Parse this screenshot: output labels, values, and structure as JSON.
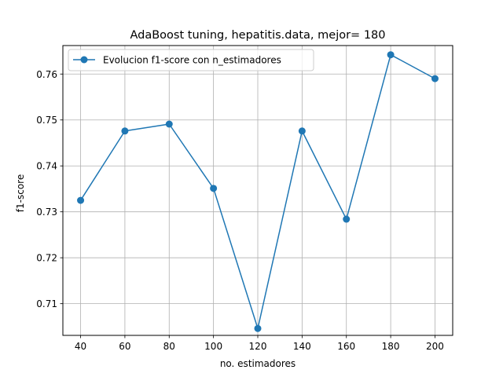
{
  "chart_data": {
    "type": "line",
    "title": "AdaBoost tuning, hepatitis.data, mejor= 180",
    "xlabel": "no. estimadores",
    "ylabel": "f1-score",
    "x": [
      40,
      60,
      80,
      100,
      120,
      140,
      160,
      180,
      200
    ],
    "series": [
      {
        "name": "Evolucion f1-score con n_estimadores",
        "values": [
          0.7325,
          0.7476,
          0.7491,
          0.7351,
          0.7046,
          0.7476,
          0.7284,
          0.7642,
          0.759
        ],
        "color": "#1f77b4",
        "marker": "circle"
      }
    ],
    "xlim": [
      32,
      208
    ],
    "ylim": [
      0.7031,
      0.7662
    ],
    "xticks": [
      40,
      60,
      80,
      100,
      120,
      140,
      160,
      180,
      200
    ],
    "xtick_labels": [
      "40",
      "60",
      "80",
      "100",
      "120",
      "140",
      "160",
      "180",
      "200"
    ],
    "yticks": [
      0.71,
      0.72,
      0.73,
      0.74,
      0.75,
      0.76
    ],
    "ytick_labels": [
      "0.71",
      "0.72",
      "0.73",
      "0.74",
      "0.75",
      "0.76"
    ],
    "grid": true,
    "legend_position": "top-left"
  }
}
